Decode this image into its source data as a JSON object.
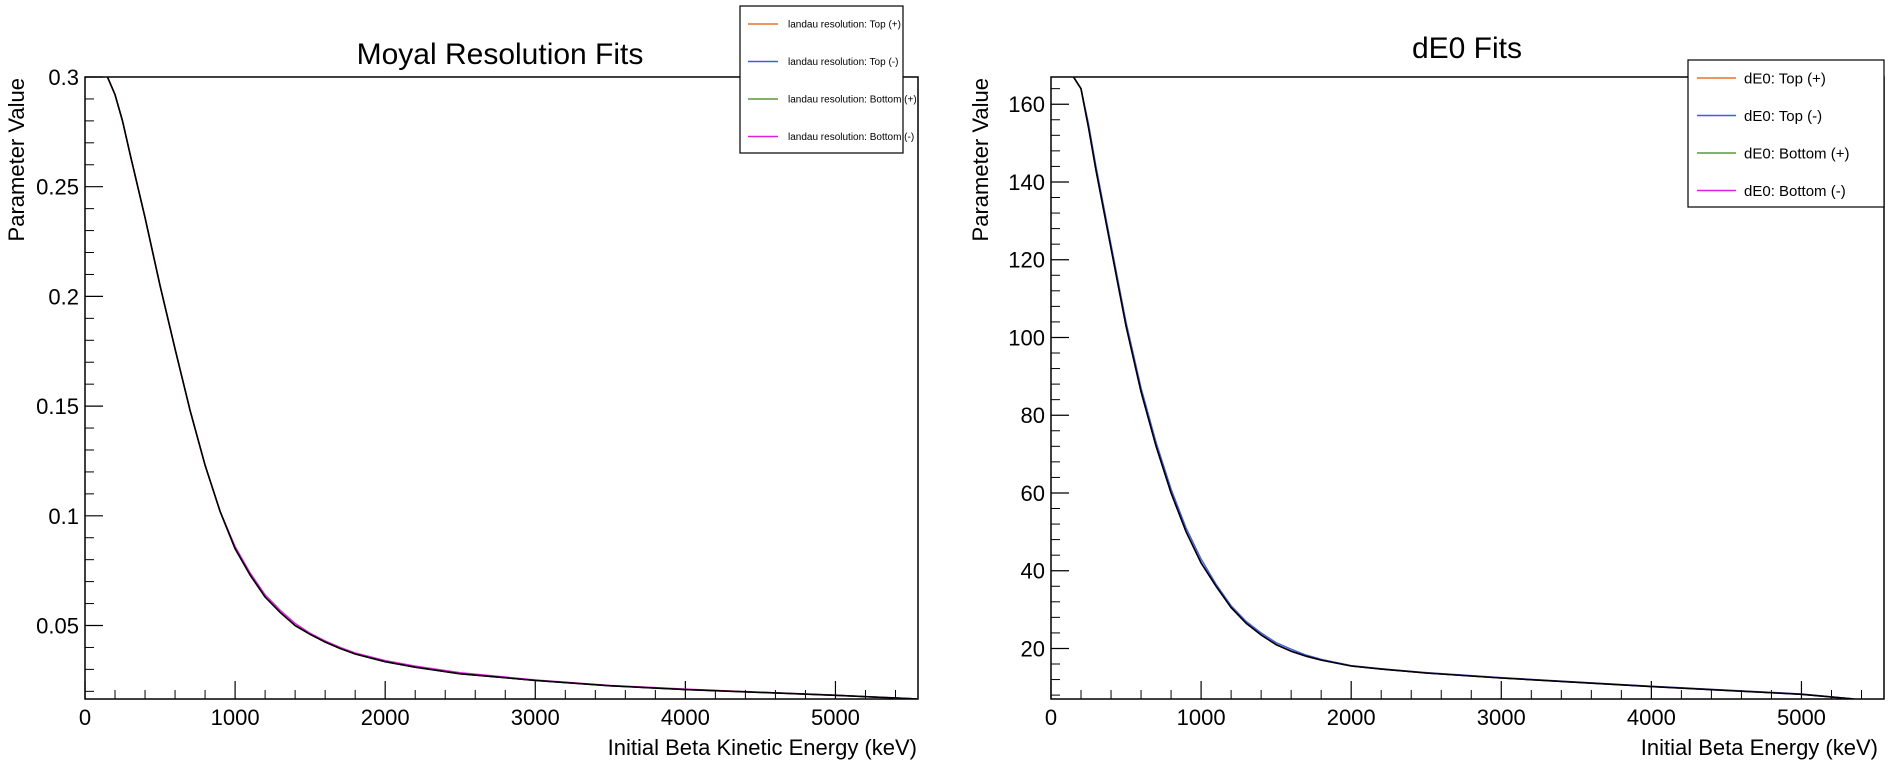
{
  "chart_data": [
    {
      "type": "line",
      "title": "Moyal Resolution Fits",
      "xlabel": "Initial Beta Kinetic Energy (keV)",
      "ylabel": "Parameter Value",
      "xlim": [
        0,
        5550
      ],
      "ylim": [
        0.0165,
        0.3
      ],
      "x_ticks": [
        0,
        1000,
        2000,
        3000,
        4000,
        5000
      ],
      "x_tick_labels": [
        "0",
        "1000",
        "2000",
        "3000",
        "4000",
        "5000"
      ],
      "y_ticks": [
        0.05,
        0.1,
        0.15,
        0.2,
        0.25,
        0.3
      ],
      "y_tick_labels": [
        "0.05",
        "0.1",
        "0.15",
        "0.2",
        "0.25",
        "0.3"
      ],
      "grid": false,
      "legend_position": "top-right",
      "x": [
        150,
        200,
        250,
        300,
        400,
        500,
        600,
        700,
        800,
        900,
        1000,
        1100,
        1200,
        1300,
        1400,
        1500,
        1600,
        1700,
        1800,
        2000,
        2200,
        2500,
        3000,
        3500,
        4000,
        4500,
        5000,
        5550
      ],
      "series": [
        {
          "name": "landau resolution:  Top (+)",
          "color": "#e8722a",
          "values": [
            0.3,
            0.292,
            0.28,
            0.265,
            0.236,
            0.205,
            0.176,
            0.148,
            0.123,
            0.102,
            0.085,
            0.073,
            0.063,
            0.056,
            0.05,
            0.046,
            0.0425,
            0.0395,
            0.037,
            0.0335,
            0.031,
            0.028,
            0.025,
            0.0225,
            0.0208,
            0.0195,
            0.0182,
            0.0165
          ]
        },
        {
          "name": "landau resolution:  Top (-)",
          "color": "#3a5fe0",
          "values": [
            0.3,
            0.292,
            0.28,
            0.265,
            0.236,
            0.205,
            0.176,
            0.148,
            0.123,
            0.102,
            0.085,
            0.073,
            0.063,
            0.056,
            0.05,
            0.046,
            0.0425,
            0.0395,
            0.037,
            0.0335,
            0.031,
            0.028,
            0.025,
            0.0225,
            0.0208,
            0.0195,
            0.0182,
            0.0165
          ]
        },
        {
          "name": "landau resolution:  Bottom (+)",
          "color": "#5a9a3a",
          "values": [
            0.3,
            0.292,
            0.28,
            0.265,
            0.236,
            0.205,
            0.176,
            0.148,
            0.123,
            0.102,
            0.085,
            0.073,
            0.063,
            0.056,
            0.05,
            0.046,
            0.0425,
            0.0395,
            0.037,
            0.0335,
            0.031,
            0.028,
            0.025,
            0.0225,
            0.0208,
            0.0195,
            0.0182,
            0.0165
          ]
        },
        {
          "name": "landau resolution:  Bottom (-)",
          "color": "#e020e0",
          "values": [
            0.3,
            0.292,
            0.28,
            0.265,
            0.236,
            0.205,
            0.176,
            0.148,
            0.123,
            0.102,
            0.086,
            0.074,
            0.064,
            0.057,
            0.051,
            0.0465,
            0.043,
            0.04,
            0.0375,
            0.034,
            0.0315,
            0.0285,
            0.0252,
            0.0227,
            0.021,
            0.0196,
            0.0183,
            0.0165
          ]
        },
        {
          "name": "",
          "color": "#000000",
          "values": [
            0.3,
            0.292,
            0.28,
            0.265,
            0.236,
            0.205,
            0.176,
            0.148,
            0.123,
            0.102,
            0.085,
            0.073,
            0.063,
            0.056,
            0.05,
            0.046,
            0.0425,
            0.0395,
            0.037,
            0.0335,
            0.031,
            0.028,
            0.025,
            0.0225,
            0.0208,
            0.0195,
            0.0182,
            0.0165
          ]
        }
      ]
    },
    {
      "type": "line",
      "title": "dE0 Fits",
      "xlabel": "Initial Beta Energy (keV)",
      "ylabel": "Parameter Value",
      "xlim": [
        0,
        5550
      ],
      "ylim": [
        7,
        167
      ],
      "x_ticks": [
        0,
        1000,
        2000,
        3000,
        4000,
        5000
      ],
      "x_tick_labels": [
        "0",
        "1000",
        "2000",
        "3000",
        "4000",
        "5000"
      ],
      "y_ticks": [
        20,
        40,
        60,
        80,
        100,
        120,
        140,
        160
      ],
      "y_tick_labels": [
        "20",
        "40",
        "60",
        "80",
        "100",
        "120",
        "140",
        "160"
      ],
      "grid": false,
      "legend_position": "top-right",
      "x": [
        150,
        200,
        250,
        300,
        400,
        500,
        600,
        700,
        800,
        900,
        1000,
        1100,
        1200,
        1300,
        1400,
        1500,
        1600,
        1700,
        1800,
        2000,
        2200,
        2500,
        3000,
        3500,
        4000,
        4500,
        5000,
        5350
      ],
      "series": [
        {
          "name": "dE0:  Top (+)",
          "color": "#e8722a",
          "values": [
            167,
            164,
            154,
            143,
            123,
            103,
            86,
            72,
            60,
            50,
            42,
            36,
            30.5,
            26.5,
            23.5,
            21,
            19.3,
            18,
            17,
            15.5,
            14.7,
            13.7,
            12.4,
            11.3,
            10.2,
            9.2,
            8.2,
            7.0
          ]
        },
        {
          "name": "dE0:  Top (-)",
          "color": "#3a5fe0",
          "values": [
            167,
            164,
            155,
            144,
            124,
            104,
            87,
            73,
            61,
            51,
            43,
            36.5,
            31,
            27,
            24,
            21.5,
            19.8,
            18.3,
            17.2,
            15.6,
            14.8,
            13.8,
            12.5,
            11.4,
            10.3,
            9.3,
            8.3,
            7.0
          ]
        },
        {
          "name": "dE0:  Bottom (+)",
          "color": "#5a9a3a",
          "values": [
            167,
            164,
            154,
            143,
            123,
            103,
            86,
            72,
            60,
            50,
            42,
            36,
            30.5,
            26.5,
            23.5,
            21,
            19.3,
            18,
            17,
            15.5,
            14.7,
            13.7,
            12.4,
            11.3,
            10.2,
            9.2,
            8.2,
            7.0
          ]
        },
        {
          "name": "dE0:  Bottom (-)",
          "color": "#e020e0",
          "values": [
            167,
            164,
            154,
            143,
            123,
            103,
            86,
            72,
            60,
            50,
            42,
            36,
            30.5,
            26.5,
            23.5,
            21,
            19.3,
            18,
            17,
            15.5,
            14.7,
            13.7,
            12.4,
            11.3,
            10.2,
            9.2,
            8.2,
            7.0
          ]
        },
        {
          "name": "",
          "color": "#000000",
          "values": [
            167,
            164,
            154,
            143,
            123,
            103,
            86,
            72,
            60,
            50,
            42,
            36,
            30.5,
            26.5,
            23.5,
            21,
            19.3,
            18,
            17,
            15.5,
            14.7,
            13.7,
            12.4,
            11.3,
            10.2,
            9.2,
            8.2,
            7.0
          ]
        }
      ]
    }
  ]
}
